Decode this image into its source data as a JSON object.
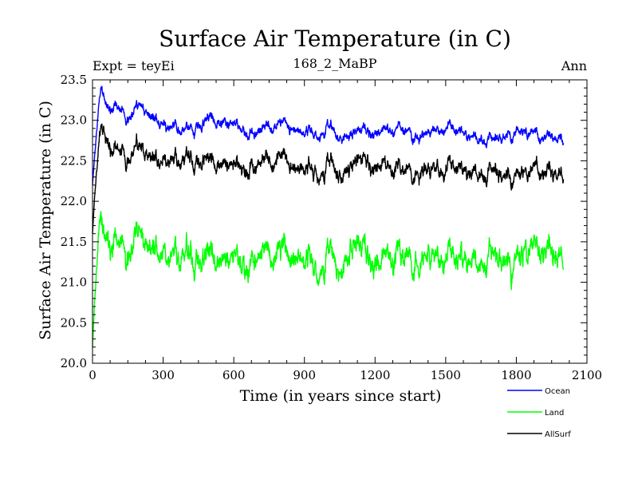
{
  "chart_data": {
    "type": "line",
    "title": "Surface Air Temperature (in C)",
    "subtitle_left": "Expt = teyEi",
    "subtitle_center": "168_2_MaBP",
    "subtitle_right": "Ann",
    "xlabel": "Time (in years since start)",
    "ylabel": "Surface Air Temperature (in C)",
    "xlim": [
      0,
      2100
    ],
    "ylim": [
      20.0,
      23.5
    ],
    "x_ticks": [
      0,
      300,
      600,
      900,
      1200,
      1500,
      1800,
      2100
    ],
    "x_tick_labels": [
      "0",
      "300",
      "600",
      "900",
      "1200",
      "1500",
      "1800",
      "2100"
    ],
    "y_ticks": [
      20.0,
      20.5,
      21.0,
      21.5,
      22.0,
      22.5,
      23.0,
      23.5
    ],
    "y_tick_labels": [
      "20.0",
      "20.5",
      "21.0",
      "21.5",
      "22.0",
      "22.5",
      "23.0",
      "23.5"
    ],
    "legend_position": "bottom-right",
    "x_end": 2000,
    "series": [
      {
        "name": "Ocean",
        "color": "#0000ff",
        "keypoints": [
          [
            0,
            22.2
          ],
          [
            10,
            22.6
          ],
          [
            25,
            23.1
          ],
          [
            40,
            23.35
          ],
          [
            60,
            23.1
          ],
          [
            100,
            23.15
          ],
          [
            150,
            23.05
          ],
          [
            200,
            23.1
          ],
          [
            300,
            22.95
          ],
          [
            400,
            22.9
          ],
          [
            500,
            23.05
          ],
          [
            600,
            22.95
          ],
          [
            700,
            22.85
          ],
          [
            800,
            22.95
          ],
          [
            900,
            22.85
          ],
          [
            1000,
            22.9
          ],
          [
            1100,
            22.8
          ],
          [
            1200,
            22.85
          ],
          [
            1300,
            22.9
          ],
          [
            1400,
            22.8
          ],
          [
            1500,
            22.9
          ],
          [
            1600,
            22.8
          ],
          [
            1700,
            22.75
          ],
          [
            1800,
            22.85
          ],
          [
            1900,
            22.75
          ],
          [
            2000,
            22.75
          ]
        ],
        "noise": 0.12
      },
      {
        "name": "Land",
        "color": "#00ff00",
        "keypoints": [
          [
            0,
            20.2
          ],
          [
            10,
            20.8
          ],
          [
            25,
            21.5
          ],
          [
            40,
            21.6
          ],
          [
            60,
            21.4
          ],
          [
            100,
            21.45
          ],
          [
            200,
            21.4
          ],
          [
            300,
            21.35
          ],
          [
            400,
            21.35
          ],
          [
            500,
            21.4
          ],
          [
            600,
            21.3
          ],
          [
            700,
            21.3
          ],
          [
            800,
            21.35
          ],
          [
            900,
            21.3
          ],
          [
            1000,
            21.3
          ],
          [
            1100,
            21.35
          ],
          [
            1200,
            21.25
          ],
          [
            1300,
            21.35
          ],
          [
            1400,
            21.25
          ],
          [
            1500,
            21.3
          ],
          [
            1600,
            21.25
          ],
          [
            1700,
            21.3
          ],
          [
            1800,
            21.25
          ],
          [
            1900,
            21.3
          ],
          [
            2000,
            21.25
          ]
        ],
        "noise": 0.28
      },
      {
        "name": "AllSurf",
        "color": "#000000",
        "keypoints": [
          [
            0,
            21.6
          ],
          [
            10,
            22.1
          ],
          [
            25,
            22.6
          ],
          [
            40,
            22.85
          ],
          [
            60,
            22.65
          ],
          [
            100,
            22.6
          ],
          [
            200,
            22.55
          ],
          [
            300,
            22.5
          ],
          [
            400,
            22.55
          ],
          [
            500,
            22.55
          ],
          [
            600,
            22.45
          ],
          [
            700,
            22.45
          ],
          [
            800,
            22.5
          ],
          [
            900,
            22.4
          ],
          [
            1000,
            22.45
          ],
          [
            1100,
            22.4
          ],
          [
            1200,
            22.45
          ],
          [
            1300,
            22.4
          ],
          [
            1400,
            22.35
          ],
          [
            1500,
            22.4
          ],
          [
            1600,
            22.35
          ],
          [
            1700,
            22.35
          ],
          [
            1800,
            22.3
          ],
          [
            1900,
            22.3
          ],
          [
            2000,
            22.3
          ]
        ],
        "noise": 0.18
      }
    ]
  }
}
